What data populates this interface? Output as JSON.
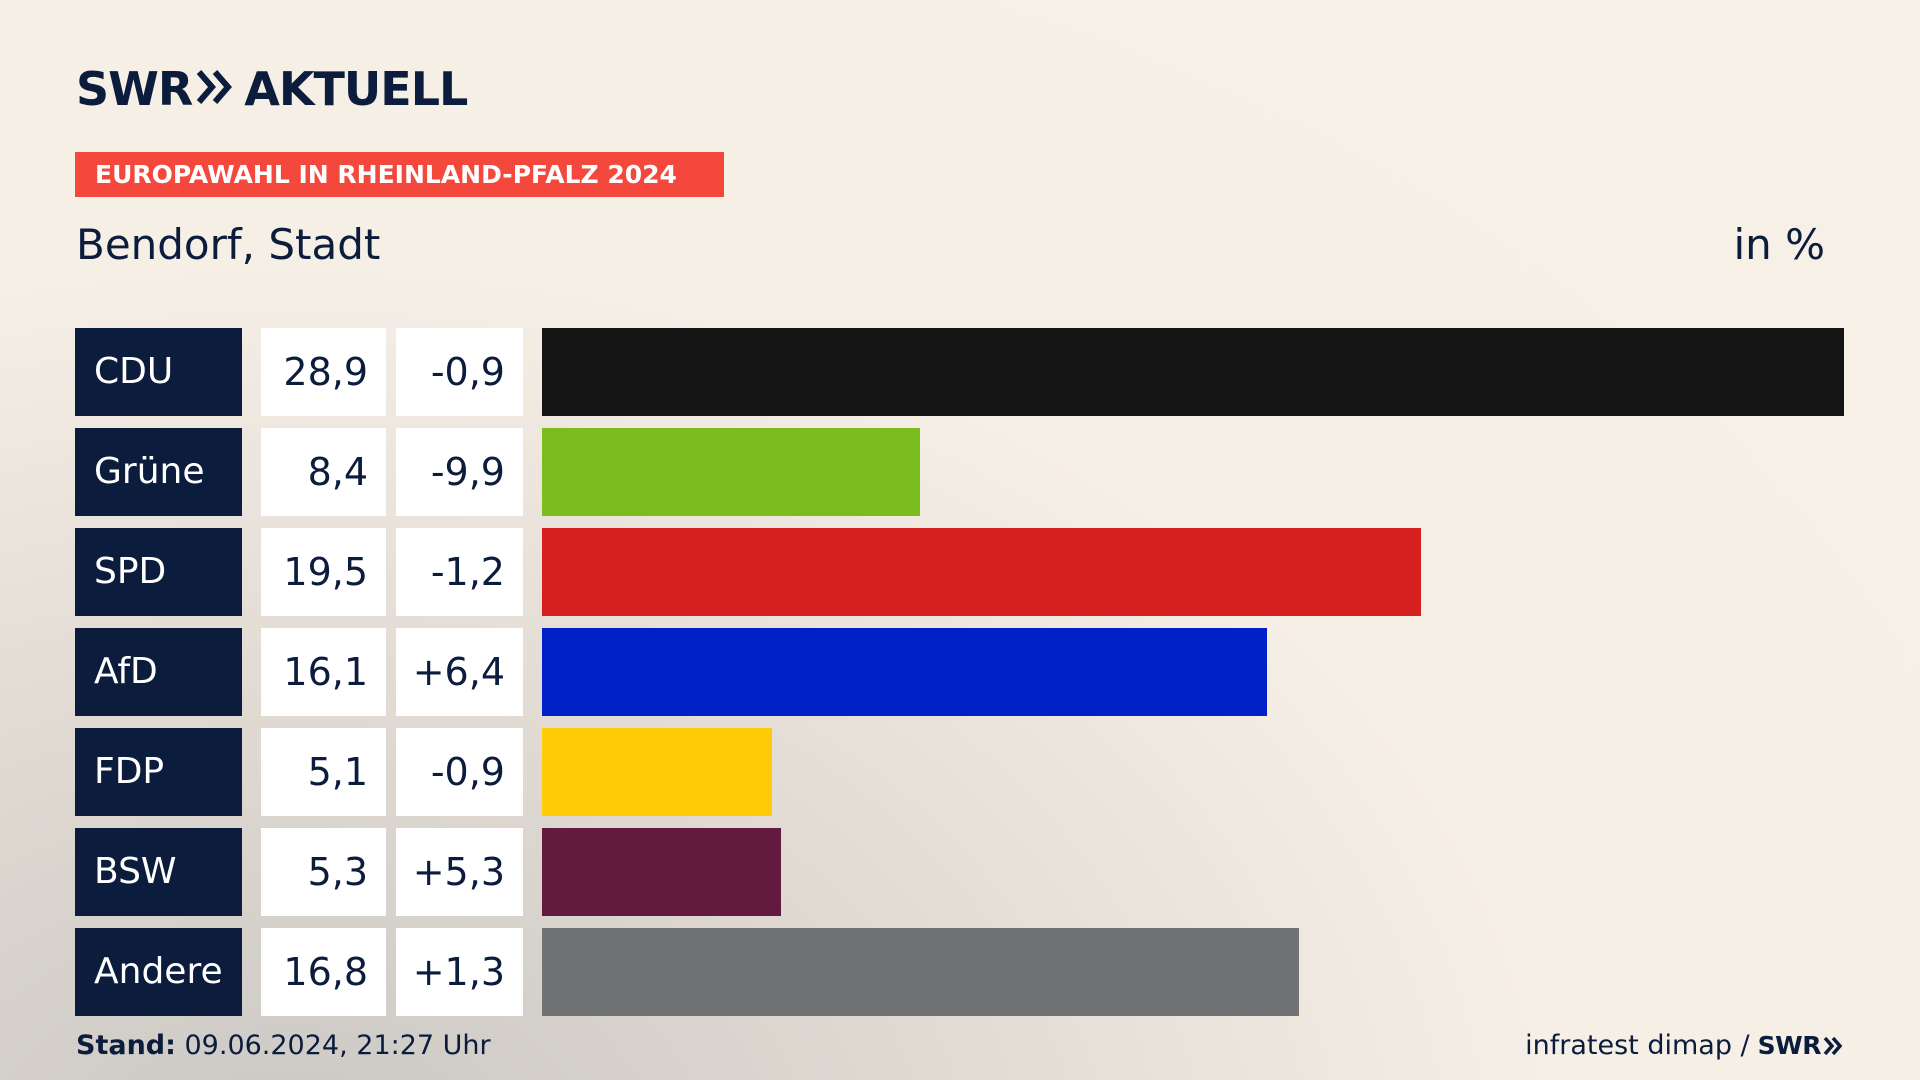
{
  "header": {
    "logo_swr": "SWR",
    "logo_aktuell": "AKTUELL",
    "banner": "EUROPAWAHL IN RHEINLAND-PFALZ 2024",
    "place": "Bendorf, Stadt",
    "unit": "in %"
  },
  "colors": {
    "navy": "#0c1c3c",
    "banner": "#f5483c"
  },
  "chart_data": {
    "type": "bar",
    "orientation": "horizontal",
    "categories": [
      "CDU",
      "Grüne",
      "SPD",
      "AfD",
      "FDP",
      "BSW",
      "Andere"
    ],
    "values": [
      28.9,
      8.4,
      19.5,
      16.1,
      5.1,
      5.3,
      16.8
    ],
    "value_labels": [
      "28,9",
      "8,4",
      "19,5",
      "16,1",
      "5,1",
      "5,3",
      "16,8"
    ],
    "diff_labels": [
      "-0,9",
      "-9,9",
      "-1,2",
      "+6,4",
      "-0,9",
      "+5,3",
      "+1,3"
    ],
    "colors": [
      "#141414",
      "#7abd1d",
      "#d61f1f",
      "#0021c8",
      "#ffcc07",
      "#641a3e",
      "#717274"
    ],
    "xlim": [
      0,
      28.9
    ],
    "unit": "in %"
  },
  "footer": {
    "stand_label": "Stand:",
    "stand_value": " 09.06.2024, 21:27 Uhr",
    "source": "infratest dimap /",
    "source_brand": "SWR"
  }
}
